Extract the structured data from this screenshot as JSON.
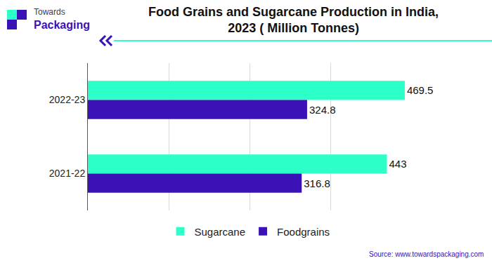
{
  "chart_data": {
    "type": "bar",
    "orientation": "horizontal",
    "title": "Food Grains and Sugarcane Production in India,\n2023 ( Million Tonnes)",
    "annotations": [
      "Towards",
      "Packaging",
      "Source: www.towardspackaging.com"
    ],
    "categories": [
      "2022-23",
      "2021-22"
    ],
    "series": [
      {
        "name": "Sugarcane",
        "color": "#2cffc8",
        "values": [
          469.5,
          443
        ]
      },
      {
        "name": "Foodgrains",
        "color": "#3a12b5",
        "values": [
          324.8,
          316.8
        ]
      }
    ],
    "xlim": [
      0,
      480
    ],
    "xticks": [
      0,
      120,
      240,
      360,
      480
    ],
    "grid": true,
    "data_labels": true,
    "tick_labels": "y",
    "legend": "bottom"
  }
}
